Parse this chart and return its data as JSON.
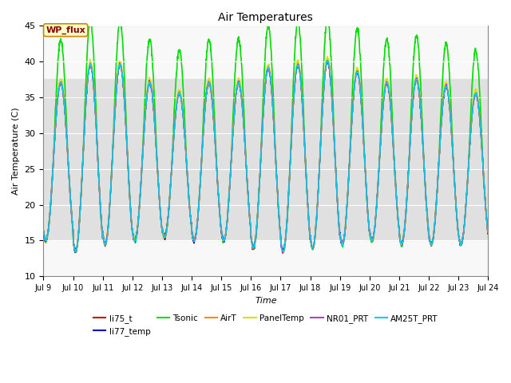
{
  "title": "Air Temperatures",
  "xlabel": "Time",
  "ylabel": "Air Temperature (C)",
  "ylim": [
    10,
    45
  ],
  "xlim_days": [
    9,
    24
  ],
  "series": [
    "li75_t",
    "li77_temp",
    "Tsonic",
    "AirT",
    "PanelTemp",
    "NR01_PRT",
    "AM25T_PRT"
  ],
  "colors": [
    "#cc0000",
    "#0000cc",
    "#00dd00",
    "#ff8800",
    "#dddd00",
    "#aa44cc",
    "#00ccee"
  ],
  "linewidths": [
    1.0,
    1.0,
    1.2,
    1.0,
    1.0,
    1.0,
    1.0
  ],
  "annotation_text": "WP_flux",
  "annotation_bg": "#ffffcc",
  "annotation_border": "#cc8800",
  "annotation_text_color": "#880000",
  "background_shading": "#e0e0e0",
  "shading_ymin": 15.0,
  "shading_ymax": 37.5,
  "n_points": 2000,
  "start_day": 9,
  "end_day": 24,
  "legend_ncol": 6,
  "yticks": [
    10,
    15,
    20,
    25,
    30,
    35,
    40,
    45
  ]
}
